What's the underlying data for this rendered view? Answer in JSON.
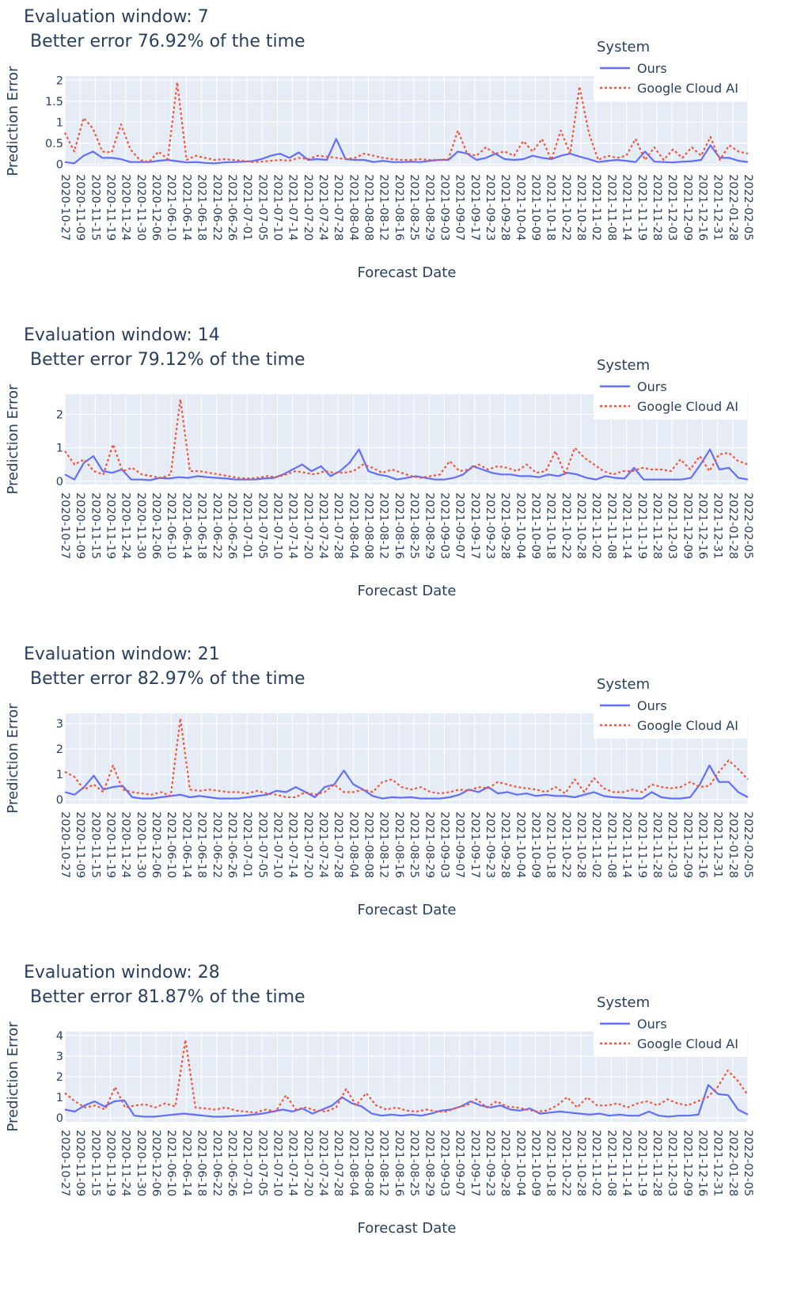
{
  "colors": {
    "ours": "#636efa",
    "google": "#ef553b",
    "plot_bg": "#e5ecf6",
    "grid": "#ffffff",
    "text": "#2a3f5f"
  },
  "chart_data": [
    {
      "type": "line",
      "title_line1": "Evaluation window: 7",
      "title_line2": "Better error 76.92% of the time",
      "xlabel": "Forecast Date",
      "ylabel": "Prediction Error",
      "ylim": [
        -0.05,
        2.1
      ],
      "yticks": [
        0,
        0.5,
        1,
        1.5,
        2
      ],
      "ytick_labels": [
        "0",
        "0.5",
        "1",
        "1.5",
        "2"
      ],
      "legend_title": "System",
      "x_ticks": [
        "2020-10-27",
        "2020-11-09",
        "2020-11-15",
        "2020-11-19",
        "2020-11-24",
        "2020-11-30",
        "2020-12-06",
        "2021-06-10",
        "2021-06-14",
        "2021-06-18",
        "2021-06-22",
        "2021-06-26",
        "2021-07-01",
        "2021-07-05",
        "2021-07-10",
        "2021-07-14",
        "2021-07-20",
        "2021-07-24",
        "2021-07-28",
        "2021-08-04",
        "2021-08-08",
        "2021-08-12",
        "2021-08-16",
        "2021-08-25",
        "2021-08-29",
        "2021-09-03",
        "2021-09-07",
        "2021-09-17",
        "2021-09-23",
        "2021-09-28",
        "2021-10-04",
        "2021-10-09",
        "2021-10-18",
        "2021-10-22",
        "2021-10-28",
        "2021-11-02",
        "2021-11-08",
        "2021-11-14",
        "2021-11-19",
        "2021-11-28",
        "2021-12-03",
        "2021-12-09",
        "2021-12-16",
        "2021-12-31",
        "2022-01-28",
        "2022-02-05"
      ],
      "series": [
        {
          "name": "Ours",
          "values": [
            0.05,
            0.02,
            0.2,
            0.3,
            0.15,
            0.15,
            0.12,
            0.05,
            0.05,
            0.05,
            0.08,
            0.1,
            0.07,
            0.04,
            0.05,
            0.03,
            0.02,
            0.04,
            0.05,
            0.06,
            0.07,
            0.12,
            0.2,
            0.25,
            0.15,
            0.28,
            0.1,
            0.12,
            0.1,
            0.6,
            0.12,
            0.1,
            0.1,
            0.05,
            0.08,
            0.05,
            0.05,
            0.06,
            0.05,
            0.08,
            0.1,
            0.1,
            0.3,
            0.25,
            0.1,
            0.15,
            0.25,
            0.12,
            0.1,
            0.12,
            0.2,
            0.15,
            0.12,
            0.2,
            0.25,
            0.18,
            0.12,
            0.05,
            0.08,
            0.1,
            0.08,
            0.05,
            0.3,
            0.06,
            0.05,
            0.04,
            0.06,
            0.07,
            0.1,
            0.45,
            0.15,
            0.15,
            0.08,
            0.05
          ]
        },
        {
          "name": "Google Cloud AI",
          "values": [
            0.75,
            0.3,
            1.1,
            0.85,
            0.3,
            0.28,
            0.95,
            0.35,
            0.1,
            0.05,
            0.3,
            0.12,
            1.95,
            0.1,
            0.2,
            0.15,
            0.1,
            0.12,
            0.1,
            0.08,
            0.05,
            0.06,
            0.08,
            0.1,
            0.08,
            0.15,
            0.12,
            0.2,
            0.18,
            0.15,
            0.12,
            0.15,
            0.25,
            0.2,
            0.15,
            0.12,
            0.1,
            0.1,
            0.12,
            0.1,
            0.1,
            0.12,
            0.8,
            0.25,
            0.2,
            0.4,
            0.25,
            0.3,
            0.2,
            0.55,
            0.3,
            0.6,
            0.1,
            0.8,
            0.25,
            1.85,
            0.75,
            0.1,
            0.2,
            0.15,
            0.2,
            0.6,
            0.1,
            0.4,
            0.1,
            0.35,
            0.15,
            0.4,
            0.2,
            0.65,
            0.1,
            0.45,
            0.3,
            0.25
          ]
        }
      ]
    },
    {
      "type": "line",
      "title_line1": "Evaluation window: 14",
      "title_line2": "Better error 79.12% of the time",
      "xlabel": "Forecast Date",
      "ylabel": "Prediction Error",
      "ylim": [
        -0.1,
        2.6
      ],
      "yticks": [
        0,
        1,
        2
      ],
      "ytick_labels": [
        "0",
        "1",
        "2"
      ],
      "legend_title": "System",
      "x_ticks": [
        "2020-10-27",
        "2020-11-09",
        "2020-11-15",
        "2020-11-19",
        "2020-11-24",
        "2020-11-30",
        "2020-12-06",
        "2021-06-10",
        "2021-06-14",
        "2021-06-18",
        "2021-06-22",
        "2021-06-26",
        "2021-07-01",
        "2021-07-05",
        "2021-07-10",
        "2021-07-14",
        "2021-07-20",
        "2021-07-24",
        "2021-07-28",
        "2021-08-04",
        "2021-08-08",
        "2021-08-12",
        "2021-08-16",
        "2021-08-25",
        "2021-08-29",
        "2021-09-03",
        "2021-09-07",
        "2021-09-17",
        "2021-09-23",
        "2021-09-28",
        "2021-10-04",
        "2021-10-09",
        "2021-10-18",
        "2021-10-22",
        "2021-10-28",
        "2021-11-02",
        "2021-11-08",
        "2021-11-14",
        "2021-11-19",
        "2021-11-28",
        "2021-12-03",
        "2021-12-09",
        "2021-12-16",
        "2021-12-31",
        "2022-01-28",
        "2022-02-05"
      ],
      "series": [
        {
          "name": "Ours",
          "values": [
            0.2,
            0.05,
            0.55,
            0.75,
            0.3,
            0.25,
            0.35,
            0.05,
            0.05,
            0.03,
            0.1,
            0.08,
            0.12,
            0.1,
            0.15,
            0.12,
            0.1,
            0.08,
            0.05,
            0.05,
            0.05,
            0.08,
            0.1,
            0.2,
            0.35,
            0.5,
            0.3,
            0.45,
            0.15,
            0.3,
            0.55,
            0.95,
            0.3,
            0.2,
            0.15,
            0.05,
            0.1,
            0.15,
            0.1,
            0.05,
            0.05,
            0.1,
            0.2,
            0.45,
            0.35,
            0.25,
            0.2,
            0.2,
            0.15,
            0.15,
            0.12,
            0.2,
            0.15,
            0.25,
            0.2,
            0.1,
            0.05,
            0.15,
            0.1,
            0.08,
            0.4,
            0.05,
            0.05,
            0.05,
            0.05,
            0.05,
            0.1,
            0.5,
            0.95,
            0.35,
            0.4,
            0.1,
            0.05
          ]
        },
        {
          "name": "Google Cloud AI",
          "values": [
            0.9,
            0.5,
            0.65,
            0.3,
            0.2,
            1.1,
            0.3,
            0.4,
            0.2,
            0.15,
            0.1,
            0.2,
            2.45,
            0.3,
            0.3,
            0.25,
            0.2,
            0.15,
            0.1,
            0.08,
            0.1,
            0.15,
            0.12,
            0.2,
            0.3,
            0.25,
            0.2,
            0.3,
            0.25,
            0.25,
            0.3,
            0.5,
            0.4,
            0.25,
            0.35,
            0.25,
            0.15,
            0.1,
            0.15,
            0.2,
            0.6,
            0.3,
            0.35,
            0.5,
            0.35,
            0.45,
            0.4,
            0.3,
            0.5,
            0.25,
            0.3,
            0.9,
            0.2,
            1.0,
            0.7,
            0.5,
            0.3,
            0.2,
            0.3,
            0.3,
            0.4,
            0.35,
            0.35,
            0.3,
            0.65,
            0.35,
            0.75,
            0.3,
            0.8,
            0.85,
            0.6,
            0.5
          ]
        }
      ]
    },
    {
      "type": "line",
      "title_line1": "Evaluation window: 21",
      "title_line2": "Better error 82.97% of the time",
      "xlabel": "Forecast Date",
      "ylabel": "Prediction Error",
      "ylim": [
        -0.15,
        3.4
      ],
      "yticks": [
        0,
        1,
        2,
        3
      ],
      "ytick_labels": [
        "0",
        "1",
        "2",
        "3"
      ],
      "legend_title": "System",
      "x_ticks": [
        "2020-10-27",
        "2020-11-09",
        "2020-11-15",
        "2020-11-19",
        "2020-11-24",
        "2020-11-30",
        "2020-12-06",
        "2021-06-10",
        "2021-06-14",
        "2021-06-18",
        "2021-06-22",
        "2021-06-26",
        "2021-07-01",
        "2021-07-05",
        "2021-07-10",
        "2021-07-14",
        "2021-07-20",
        "2021-07-24",
        "2021-07-28",
        "2021-08-04",
        "2021-08-08",
        "2021-08-12",
        "2021-08-16",
        "2021-08-25",
        "2021-08-29",
        "2021-09-03",
        "2021-09-07",
        "2021-09-17",
        "2021-09-23",
        "2021-09-28",
        "2021-10-04",
        "2021-10-09",
        "2021-10-18",
        "2021-10-22",
        "2021-10-28",
        "2021-11-02",
        "2021-11-08",
        "2021-11-14",
        "2021-11-19",
        "2021-11-28",
        "2021-12-03",
        "2021-12-09",
        "2021-12-16",
        "2021-12-31",
        "2022-01-28",
        "2022-02-05"
      ],
      "series": [
        {
          "name": "Ours",
          "values": [
            0.3,
            0.2,
            0.5,
            0.95,
            0.4,
            0.5,
            0.55,
            0.1,
            0.05,
            0.05,
            0.1,
            0.15,
            0.2,
            0.1,
            0.15,
            0.1,
            0.05,
            0.05,
            0.05,
            0.1,
            0.15,
            0.2,
            0.35,
            0.3,
            0.5,
            0.3,
            0.1,
            0.5,
            0.6,
            1.15,
            0.6,
            0.4,
            0.15,
            0.05,
            0.1,
            0.08,
            0.1,
            0.05,
            0.05,
            0.05,
            0.1,
            0.2,
            0.4,
            0.3,
            0.5,
            0.25,
            0.3,
            0.2,
            0.25,
            0.15,
            0.2,
            0.15,
            0.15,
            0.1,
            0.2,
            0.3,
            0.15,
            0.1,
            0.08,
            0.05,
            0.05,
            0.3,
            0.1,
            0.05,
            0.05,
            0.1,
            0.6,
            1.35,
            0.7,
            0.7,
            0.3,
            0.1
          ]
        },
        {
          "name": "Google Cloud AI",
          "values": [
            1.1,
            0.9,
            0.4,
            0.6,
            0.3,
            1.35,
            0.4,
            0.3,
            0.25,
            0.2,
            0.3,
            0.15,
            3.2,
            0.4,
            0.35,
            0.4,
            0.35,
            0.3,
            0.3,
            0.25,
            0.35,
            0.25,
            0.2,
            0.1,
            0.1,
            0.3,
            0.2,
            0.3,
            0.6,
            0.3,
            0.3,
            0.4,
            0.3,
            0.7,
            0.8,
            0.5,
            0.4,
            0.5,
            0.3,
            0.25,
            0.3,
            0.4,
            0.35,
            0.5,
            0.45,
            0.7,
            0.6,
            0.5,
            0.45,
            0.4,
            0.3,
            0.5,
            0.25,
            0.8,
            0.3,
            0.85,
            0.45,
            0.3,
            0.3,
            0.4,
            0.3,
            0.6,
            0.5,
            0.45,
            0.5,
            0.7,
            0.5,
            0.55,
            1.1,
            1.55,
            1.2,
            0.8
          ]
        }
      ]
    },
    {
      "type": "line",
      "title_line1": "Evaluation window: 28",
      "title_line2": "Better error 81.87% of the time",
      "xlabel": "Forecast Date",
      "ylabel": "Prediction Error",
      "ylim": [
        -0.2,
        4.2
      ],
      "yticks": [
        0,
        1,
        2,
        3,
        4
      ],
      "ytick_labels": [
        "0",
        "1",
        "2",
        "3",
        "4"
      ],
      "legend_title": "System",
      "x_ticks": [
        "2020-10-27",
        "2020-11-09",
        "2020-11-15",
        "2020-11-19",
        "2020-11-24",
        "2020-11-30",
        "2020-12-06",
        "2021-06-10",
        "2021-06-14",
        "2021-06-18",
        "2021-06-22",
        "2021-06-26",
        "2021-07-01",
        "2021-07-05",
        "2021-07-10",
        "2021-07-14",
        "2021-07-20",
        "2021-07-24",
        "2021-07-28",
        "2021-08-04",
        "2021-08-08",
        "2021-08-12",
        "2021-08-16",
        "2021-08-25",
        "2021-08-29",
        "2021-09-03",
        "2021-09-07",
        "2021-09-17",
        "2021-09-23",
        "2021-09-28",
        "2021-10-04",
        "2021-10-09",
        "2021-10-18",
        "2021-10-22",
        "2021-10-28",
        "2021-11-02",
        "2021-11-08",
        "2021-11-14",
        "2021-11-19",
        "2021-11-28",
        "2021-12-03",
        "2021-12-09",
        "2021-12-16",
        "2021-12-31",
        "2022-01-28",
        "2022-02-05"
      ],
      "series": [
        {
          "name": "Ours",
          "values": [
            0.4,
            0.3,
            0.6,
            0.8,
            0.55,
            0.8,
            0.85,
            0.1,
            0.05,
            0.05,
            0.1,
            0.15,
            0.2,
            0.15,
            0.1,
            0.05,
            0.05,
            0.08,
            0.1,
            0.15,
            0.2,
            0.3,
            0.4,
            0.3,
            0.45,
            0.2,
            0.4,
            0.6,
            1.0,
            0.7,
            0.55,
            0.2,
            0.1,
            0.15,
            0.1,
            0.15,
            0.1,
            0.2,
            0.35,
            0.4,
            0.55,
            0.8,
            0.6,
            0.5,
            0.6,
            0.4,
            0.35,
            0.45,
            0.2,
            0.25,
            0.3,
            0.25,
            0.2,
            0.15,
            0.2,
            0.1,
            0.15,
            0.1,
            0.1,
            0.3,
            0.1,
            0.05,
            0.1,
            0.1,
            0.15,
            1.6,
            1.15,
            1.1,
            0.4,
            0.15
          ]
        },
        {
          "name": "Google Cloud AI",
          "values": [
            1.2,
            0.8,
            0.5,
            0.6,
            0.4,
            1.5,
            0.5,
            0.6,
            0.65,
            0.5,
            0.7,
            0.55,
            3.8,
            0.5,
            0.45,
            0.4,
            0.5,
            0.35,
            0.3,
            0.25,
            0.4,
            0.3,
            1.1,
            0.4,
            0.5,
            0.35,
            0.3,
            0.5,
            1.4,
            0.6,
            1.2,
            0.6,
            0.4,
            0.5,
            0.35,
            0.3,
            0.4,
            0.3,
            0.3,
            0.5,
            0.6,
            0.9,
            0.5,
            0.8,
            0.55,
            0.5,
            0.4,
            0.3,
            0.35,
            0.6,
            1.0,
            0.5,
            1.0,
            0.6,
            0.6,
            0.7,
            0.5,
            0.7,
            0.8,
            0.6,
            0.9,
            0.7,
            0.6,
            0.8,
            1.0,
            1.5,
            2.3,
            1.8,
            1.1
          ]
        }
      ]
    }
  ]
}
